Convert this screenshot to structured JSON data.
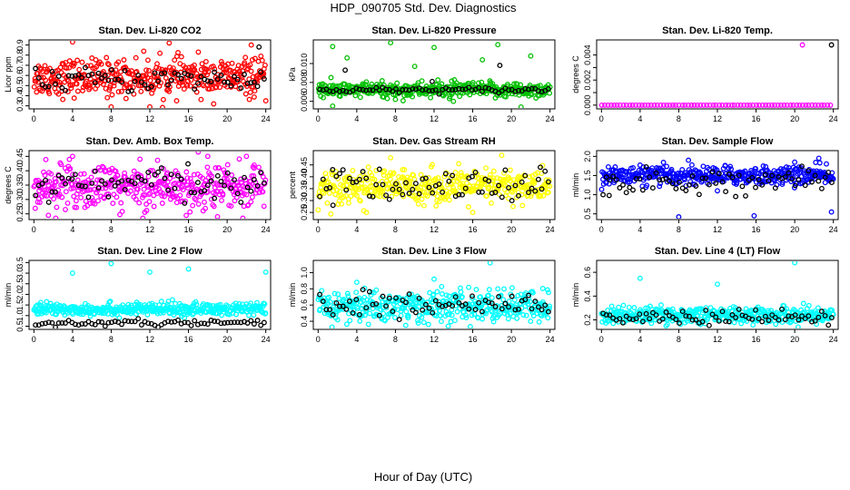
{
  "main_title": "HDP_090705  Std. Dev. Diagnostics",
  "x_axis_label": "Hour of Day (UTC)",
  "chart_data": [
    {
      "type": "scatter",
      "title": "Stan. Dev. Li-820 CO2",
      "ylabel": "Licor ppm",
      "xlim": [
        -0.5,
        24.5
      ],
      "ylim": [
        0.27,
        0.95
      ],
      "xticks": [
        0,
        4,
        8,
        12,
        16,
        20,
        24
      ],
      "yticks": [
        0.3,
        0.5,
        0.7,
        0.9
      ],
      "ytick_labels": [
        "0.3",
        "0.5",
        "0.7",
        "0.9"
      ],
      "extra_yticks": [
        0.4,
        0.6,
        0.8
      ],
      "extra_ytick_labels": [
        "0.4",
        "0.6",
        "0.8"
      ],
      "series": [
        {
          "name": "all",
          "color": "#ff0000",
          "n": 420,
          "center": 0.58,
          "spread": 0.09,
          "outliers": [
            [
              4,
              0.93
            ],
            [
              8,
              0.29
            ],
            [
              12,
              0.29
            ],
            [
              14,
              0.92
            ],
            [
              22.5,
              0.9
            ]
          ]
        },
        {
          "name": "hourly",
          "color": "#000000",
          "n": 70,
          "center": 0.56,
          "spread": 0.06,
          "outliers": [
            [
              23.3,
              0.88
            ]
          ]
        }
      ]
    },
    {
      "type": "scatter",
      "title": "Stan. Dev. Li-820 Pressure",
      "ylabel": "kPa",
      "xlim": [
        -0.5,
        24.5
      ],
      "ylim": [
        0.0052,
        0.0125
      ],
      "xticks": [
        0,
        4,
        8,
        12,
        16,
        20,
        24
      ],
      "yticks": [
        0.006,
        0.008,
        0.01
      ],
      "ytick_labels": [
        "0.006",
        "0.008",
        "0.010"
      ],
      "extra_yticks": [],
      "extra_ytick_labels": [],
      "series": [
        {
          "name": "all",
          "color": "#00c000",
          "n": 420,
          "center": 0.0072,
          "spread": 0.0004,
          "outliers": [
            [
              1.5,
              0.0118
            ],
            [
              7.5,
              0.0122
            ],
            [
              12,
              0.0117
            ],
            [
              18.6,
              0.012
            ],
            [
              22,
              0.0108
            ],
            [
              3,
              0.0106
            ],
            [
              17,
              0.0104
            ],
            [
              10,
              0.0097
            ],
            [
              1.5,
              0.0055
            ],
            [
              21,
              0.0054
            ],
            [
              8,
              0.0062
            ],
            [
              14,
              0.006
            ]
          ]
        },
        {
          "name": "hourly",
          "color": "#000000",
          "n": 70,
          "center": 0.0072,
          "spread": 0.00015,
          "outliers": [
            [
              2.8,
              0.0093
            ],
            [
              18.8,
              0.0098
            ],
            [
              11.8,
              0.0081
            ]
          ]
        }
      ]
    },
    {
      "type": "scatter",
      "title": "Stan. Dev. Li-820 Temp.",
      "ylabel": "degrees C",
      "xlim": [
        -0.5,
        24.5
      ],
      "ylim": [
        -0.0003,
        0.0052
      ],
      "xticks": [
        0,
        4,
        8,
        12,
        16,
        20,
        24
      ],
      "yticks": [
        0,
        0.001,
        0.002,
        0.003,
        0.004
      ],
      "ytick_labels": [
        "0.000",
        "",
        "0.002",
        "",
        "0.004"
      ],
      "extra_yticks": [],
      "extra_ytick_labels": [],
      "series": [
        {
          "name": "all",
          "color": "#ff00ff",
          "n": 75,
          "center": 0.0,
          "spread": 0,
          "outliers": [
            [
              20.8,
              0.0048
            ]
          ]
        },
        {
          "name": "hourly",
          "color": "#000000",
          "n": 0,
          "center": 0.0,
          "spread": 0,
          "outliers": [
            [
              23.8,
              0.0048
            ]
          ]
        }
      ]
    },
    {
      "type": "scatter",
      "title": "Stan. Dev. Amb. Box Temp.",
      "ylabel": "degrees C",
      "xlim": [
        -0.5,
        24.5
      ],
      "ylim": [
        0.23,
        0.47
      ],
      "xticks": [
        0,
        4,
        8,
        12,
        16,
        20,
        24
      ],
      "yticks": [
        0.25,
        0.35,
        0.45
      ],
      "ytick_labels": [
        "0.25",
        "0.35",
        "0.45"
      ],
      "extra_yticks": [
        0.3,
        0.4
      ],
      "extra_ytick_labels": [
        "0.30",
        "0.40"
      ],
      "series": [
        {
          "name": "all",
          "color": "#ff00ff",
          "n": 420,
          "center": 0.345,
          "spread": 0.04,
          "outliers": [
            [
              1.5,
              0.245
            ],
            [
              4,
              0.45
            ],
            [
              18,
              0.45
            ],
            [
              22,
              0.45
            ],
            [
              19,
              0.24
            ]
          ]
        },
        {
          "name": "hourly",
          "color": "#000000",
          "n": 70,
          "center": 0.35,
          "spread": 0.03,
          "outliers": []
        }
      ]
    },
    {
      "type": "scatter",
      "title": "Stan. Dev. Gas Stream RH",
      "ylabel": "percent",
      "xlim": [
        -0.5,
        24.5
      ],
      "ylim": [
        0.22,
        0.51
      ],
      "xticks": [
        0,
        4,
        8,
        12,
        16,
        20,
        24
      ],
      "yticks": [
        0.25,
        0.35,
        0.45
      ],
      "ytick_labels": [
        "0.25",
        "0.35",
        "0.45"
      ],
      "extra_yticks": [
        0.3,
        0.4
      ],
      "extra_ytick_labels": [
        "0.30",
        "0.40"
      ],
      "series": [
        {
          "name": "all",
          "color": "#ffff00",
          "n": 420,
          "center": 0.36,
          "spread": 0.035,
          "outliers": [
            [
              7.5,
              0.48
            ],
            [
              19,
              0.49
            ],
            [
              5,
              0.25
            ],
            [
              16,
              0.25
            ]
          ]
        },
        {
          "name": "hourly",
          "color": "#000000",
          "n": 70,
          "center": 0.36,
          "spread": 0.035,
          "outliers": [
            [
              23,
              0.44
            ],
            [
              1.5,
              0.43
            ]
          ]
        }
      ]
    },
    {
      "type": "scatter",
      "title": "Stan. Dev. Sample Flow",
      "ylabel": "ml/min",
      "xlim": [
        -0.5,
        24.5
      ],
      "ylim": [
        0.35,
        2.15
      ],
      "xticks": [
        0,
        4,
        8,
        12,
        16,
        20,
        24
      ],
      "yticks": [
        0.5,
        1.0,
        1.5,
        2.0
      ],
      "ytick_labels": [
        "0.5",
        "1.0",
        "1.5",
        "2.0"
      ],
      "extra_yticks": [],
      "extra_ytick_labels": [],
      "series": [
        {
          "name": "all",
          "color": "#0000ff",
          "n": 420,
          "center": 1.5,
          "spread": 0.12,
          "outliers": [
            [
              8,
              0.42
            ],
            [
              15.8,
              0.45
            ],
            [
              23.8,
              0.55
            ],
            [
              20,
              1.85
            ],
            [
              9,
              1.9
            ],
            [
              22.5,
              1.95
            ],
            [
              12,
              1.1
            ]
          ]
        },
        {
          "name": "hourly",
          "color": "#000000",
          "n": 70,
          "center": 1.35,
          "spread": 0.15,
          "outliers": [
            [
              0.8,
              0.98
            ]
          ]
        }
      ]
    },
    {
      "type": "scatter",
      "title": "Stan. Dev. Line 2 Flow",
      "ylabel": "ml/min",
      "xlim": [
        -0.5,
        24.5
      ],
      "ylim": [
        0.35,
        3.6
      ],
      "xticks": [
        0,
        4,
        8,
        12,
        16,
        20,
        24
      ],
      "yticks": [
        0.5,
        1.5,
        2.5,
        3.5
      ],
      "ytick_labels": [
        "0.5",
        "1.5",
        "2.5",
        "3.5"
      ],
      "extra_yticks": [
        1.0,
        2.0,
        3.0
      ],
      "extra_ytick_labels": [
        "1.0",
        "2.0",
        "3.0"
      ],
      "series": [
        {
          "name": "all",
          "color": "#00ffff",
          "n": 420,
          "center": 1.3,
          "spread": 0.15,
          "outliers": [
            [
              4,
              3.0
            ],
            [
              8,
              3.45
            ],
            [
              12,
              3.05
            ],
            [
              16,
              3.2
            ],
            [
              24,
              3.05
            ]
          ]
        },
        {
          "name": "hourly",
          "color": "#000000",
          "n": 70,
          "center": 0.65,
          "spread": 0.07,
          "outliers": []
        }
      ]
    },
    {
      "type": "scatter",
      "title": "Stan. Dev. Line 3 Flow",
      "ylabel": "ml/min",
      "xlim": [
        -0.5,
        24.5
      ],
      "ylim": [
        0.3,
        1.15
      ],
      "xticks": [
        0,
        4,
        8,
        12,
        16,
        20,
        24
      ],
      "yticks": [
        0.4,
        0.8
      ],
      "ytick_labels": [
        "0.4",
        "0.8"
      ],
      "extra_yticks": [
        0.6,
        1.0
      ],
      "extra_ytick_labels": [
        "0.6",
        "1.0"
      ],
      "series": [
        {
          "name": "all",
          "color": "#00ffff",
          "n": 420,
          "center": 0.58,
          "spread": 0.1,
          "outliers": [
            [
              17.8,
              1.12
            ],
            [
              12,
              0.92
            ],
            [
              4,
              0.88
            ]
          ]
        },
        {
          "name": "hourly",
          "color": "#000000",
          "n": 70,
          "center": 0.6,
          "spread": 0.08,
          "outliers": []
        }
      ]
    },
    {
      "type": "scatter",
      "title": "Stan. Dev. Line 4 (LT) Flow",
      "ylabel": "ml/min",
      "xlim": [
        -0.5,
        24.5
      ],
      "ylim": [
        0.12,
        0.7
      ],
      "xticks": [
        0,
        4,
        8,
        12,
        16,
        20,
        24
      ],
      "yticks": [
        0.2,
        0.4,
        0.6
      ],
      "ytick_labels": [
        "0.2",
        "0.4",
        "0.6"
      ],
      "extra_yticks": [],
      "extra_ytick_labels": [],
      "series": [
        {
          "name": "all",
          "color": "#00ffff",
          "n": 420,
          "center": 0.24,
          "spread": 0.035,
          "outliers": [
            [
              4,
              0.55
            ],
            [
              12,
              0.5
            ],
            [
              20,
              0.68
            ]
          ]
        },
        {
          "name": "hourly",
          "color": "#000000",
          "n": 70,
          "center": 0.22,
          "spread": 0.03,
          "outliers": []
        }
      ]
    }
  ]
}
